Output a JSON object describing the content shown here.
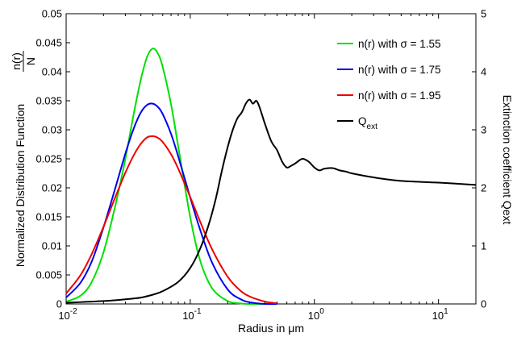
{
  "chart_data": {
    "type": "line",
    "title": "",
    "xlabel": "Radius in μm",
    "ylabel_left": {
      "text": "Normalized Distribution Function",
      "fraction_numerator": "n(r)",
      "fraction_denominator": "N"
    },
    "ylabel_right": "Extinction coefficient Qext",
    "x_scale": "log",
    "xlim": [
      0.01,
      20
    ],
    "ylim_left": [
      0,
      0.05
    ],
    "ylim_right": [
      0,
      5
    ],
    "grid": false,
    "legend_position": "top-right",
    "x_ticks": [
      {
        "value": 0.01,
        "base": "10",
        "exp": "-2"
      },
      {
        "value": 0.1,
        "base": "10",
        "exp": "-1"
      },
      {
        "value": 1,
        "base": "10",
        "exp": "0"
      },
      {
        "value": 10,
        "base": "10",
        "exp": "1"
      }
    ],
    "y_ticks_left": [
      "0",
      "0.005",
      "0.01",
      "0.015",
      "0.02",
      "0.025",
      "0.03",
      "0.035",
      "0.04",
      "0.045",
      "0.05"
    ],
    "y_ticks_left_values": [
      0,
      0.005,
      0.01,
      0.015,
      0.02,
      0.025,
      0.03,
      0.035,
      0.04,
      0.045,
      0.05
    ],
    "y_ticks_right": [
      "0",
      "1",
      "2",
      "3",
      "4",
      "5"
    ],
    "y_ticks_right_values": [
      0,
      1,
      2,
      3,
      4,
      5
    ],
    "series": [
      {
        "name": "n(r) with σ = 1.55",
        "color": "#00e000",
        "axis": "left",
        "x": [
          0.01,
          0.013,
          0.016,
          0.02,
          0.025,
          0.03,
          0.035,
          0.04,
          0.045,
          0.05,
          0.055,
          0.06,
          0.07,
          0.08,
          0.1,
          0.12,
          0.15,
          0.2,
          0.25,
          0.3,
          0.4,
          0.5
        ],
        "y": [
          0.0004,
          0.0014,
          0.0037,
          0.0089,
          0.0171,
          0.025,
          0.0327,
          0.0387,
          0.0426,
          0.044,
          0.0431,
          0.0408,
          0.0344,
          0.0271,
          0.0149,
          0.0075,
          0.0027,
          0.0005,
          0.0001,
          0.0,
          0.0,
          0.0
        ]
      },
      {
        "name": "n(r) with σ = 1.75",
        "color": "#0000ee",
        "axis": "left",
        "x": [
          0.01,
          0.013,
          0.016,
          0.02,
          0.025,
          0.03,
          0.035,
          0.04,
          0.045,
          0.05,
          0.055,
          0.06,
          0.07,
          0.08,
          0.1,
          0.12,
          0.15,
          0.2,
          0.25,
          0.3,
          0.4,
          0.5
        ],
        "y": [
          0.0011,
          0.0036,
          0.0072,
          0.0132,
          0.0201,
          0.0259,
          0.0302,
          0.033,
          0.0343,
          0.0345,
          0.0339,
          0.0327,
          0.0293,
          0.0254,
          0.0183,
          0.0128,
          0.0071,
          0.0025,
          0.0009,
          0.0003,
          0.0,
          0.0
        ]
      },
      {
        "name": "n(r) with σ = 1.95",
        "color": "#ee0000",
        "axis": "left",
        "x": [
          0.01,
          0.013,
          0.016,
          0.02,
          0.025,
          0.03,
          0.035,
          0.04,
          0.045,
          0.05,
          0.055,
          0.06,
          0.07,
          0.08,
          0.1,
          0.12,
          0.15,
          0.2,
          0.25,
          0.3,
          0.4,
          0.5
        ],
        "y": [
          0.0018,
          0.0049,
          0.0085,
          0.0133,
          0.0185,
          0.0226,
          0.0256,
          0.0276,
          0.0287,
          0.0289,
          0.0286,
          0.0279,
          0.0258,
          0.0233,
          0.0184,
          0.0142,
          0.0094,
          0.0047,
          0.0024,
          0.0013,
          0.0004,
          0.0001
        ]
      },
      {
        "name": "Q_ext",
        "label_main": "Q",
        "label_sub": "ext",
        "color": "#000000",
        "axis": "right",
        "x": [
          0.01,
          0.02,
          0.03,
          0.04,
          0.05,
          0.06,
          0.08,
          0.1,
          0.12,
          0.14,
          0.16,
          0.18,
          0.2,
          0.22,
          0.24,
          0.26,
          0.28,
          0.3,
          0.32,
          0.34,
          0.36,
          0.4,
          0.45,
          0.5,
          0.55,
          0.6,
          0.65,
          0.7,
          0.8,
          0.9,
          1.0,
          1.1,
          1.2,
          1.4,
          1.6,
          1.8,
          2,
          3,
          5,
          10,
          20
        ],
        "y": [
          0.02,
          0.05,
          0.08,
          0.11,
          0.16,
          0.22,
          0.38,
          0.62,
          0.95,
          1.35,
          1.8,
          2.3,
          2.7,
          3.0,
          3.2,
          3.3,
          3.45,
          3.52,
          3.45,
          3.5,
          3.4,
          3.1,
          2.8,
          2.65,
          2.45,
          2.35,
          2.38,
          2.42,
          2.5,
          2.45,
          2.35,
          2.3,
          2.33,
          2.34,
          2.3,
          2.28,
          2.25,
          2.18,
          2.12,
          2.09,
          2.05
        ]
      }
    ]
  }
}
